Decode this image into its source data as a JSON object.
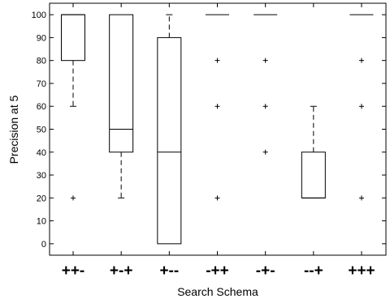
{
  "chart_data": {
    "type": "box",
    "title": "",
    "xlabel": "Search Schema",
    "ylabel": "Precision at 5",
    "ylim": [
      -5,
      105
    ],
    "yticks": [
      0,
      10,
      20,
      30,
      40,
      50,
      60,
      70,
      80,
      90,
      100
    ],
    "grid": false,
    "categories": [
      "++-",
      "+-+",
      "+--",
      "-++",
      "-+-",
      "--+",
      "+++"
    ],
    "boxes": [
      {
        "category": "++-",
        "q1": 80,
        "median": 100,
        "q3": 100,
        "whisker_low": 60,
        "whisker_high": 100,
        "outliers": [
          20
        ]
      },
      {
        "category": "+-+",
        "q1": 40,
        "median": 50,
        "q3": 100,
        "whisker_low": 20,
        "whisker_high": 100,
        "outliers": []
      },
      {
        "category": "+--",
        "q1": 0,
        "median": 40,
        "q3": 90,
        "whisker_low": 0,
        "whisker_high": 100,
        "outliers": []
      },
      {
        "category": "-++",
        "q1": 100,
        "median": 100,
        "q3": 100,
        "whisker_low": 100,
        "whisker_high": 100,
        "outliers": [
          80,
          60,
          20
        ]
      },
      {
        "category": "-+-",
        "q1": 100,
        "median": 100,
        "q3": 100,
        "whisker_low": 100,
        "whisker_high": 100,
        "outliers": [
          80,
          60,
          40
        ]
      },
      {
        "category": "--+",
        "q1": 20,
        "median": 20,
        "q3": 40,
        "whisker_low": 20,
        "whisker_high": 60,
        "outliers": []
      },
      {
        "category": "+++",
        "q1": 100,
        "median": 100,
        "q3": 100,
        "whisker_low": 100,
        "whisker_high": 100,
        "outliers": [
          80,
          60,
          20
        ]
      }
    ]
  }
}
